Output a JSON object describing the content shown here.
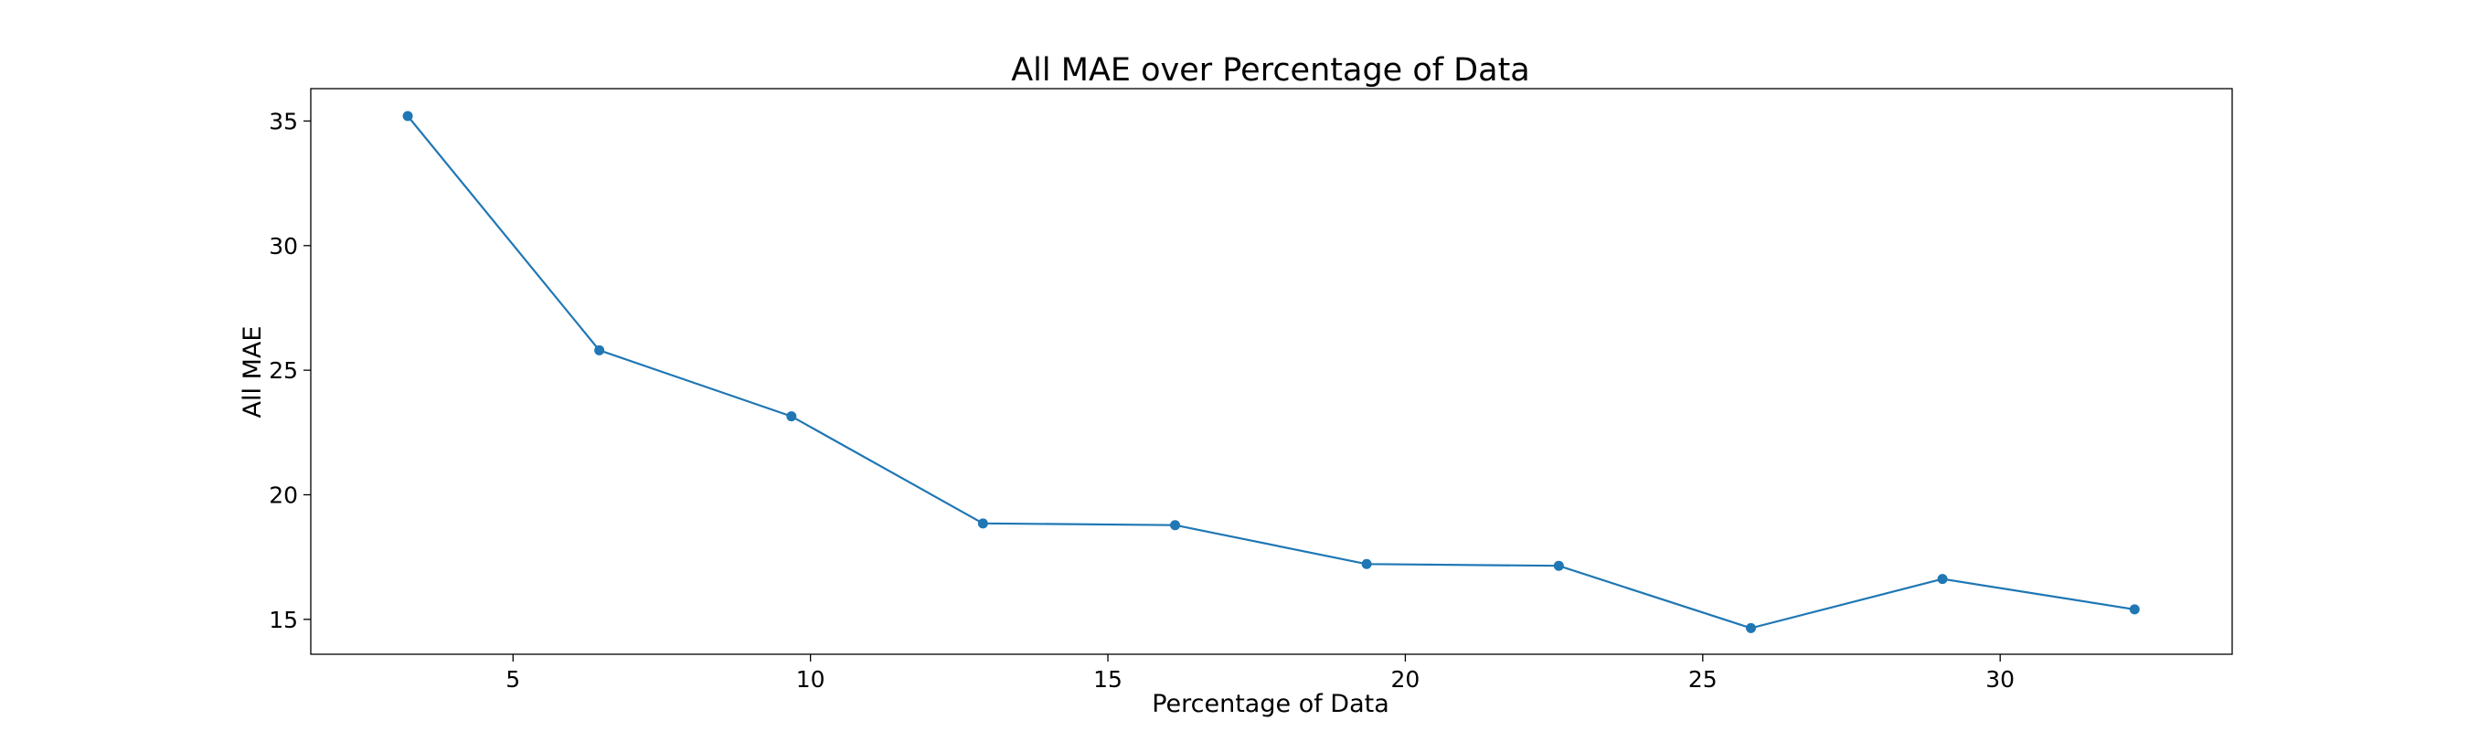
{
  "chart_data": {
    "type": "line",
    "title": "All MAE over Percentage of Data",
    "xlabel": "Percentage of Data",
    "ylabel": "All MAE",
    "xlim": [
      1.6,
      33.9
    ],
    "ylim": [
      13.6,
      36.3
    ],
    "xticks": [
      5,
      10,
      15,
      20,
      25,
      30
    ],
    "yticks": [
      15,
      20,
      25,
      30,
      35
    ],
    "grid": false,
    "marker": "circle",
    "color": "#1f77b4",
    "series": [
      {
        "x": [
          3.23,
          6.45,
          9.68,
          12.9,
          16.13,
          19.35,
          22.58,
          25.81,
          29.03,
          32.26
        ],
        "values": [
          35.2,
          25.8,
          23.15,
          18.85,
          18.78,
          17.22,
          17.15,
          14.65,
          16.62,
          15.4
        ]
      }
    ]
  }
}
